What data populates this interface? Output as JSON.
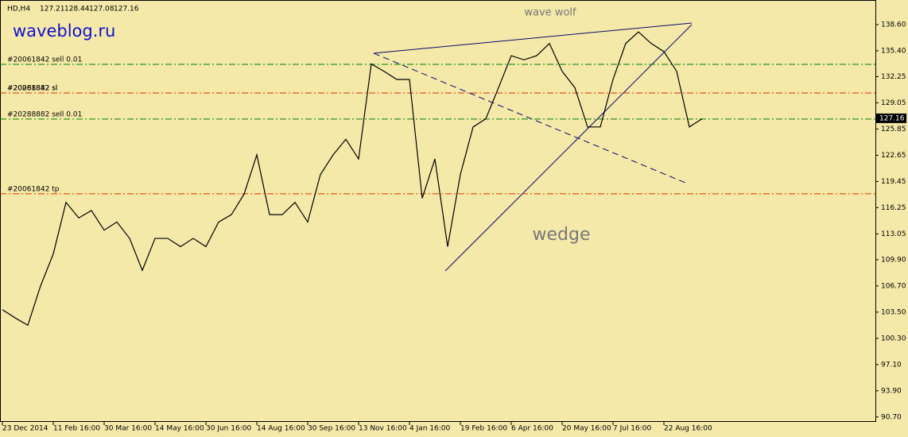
{
  "chart_data": {
    "type": "line",
    "header": {
      "symbol": "HD,H4",
      "ohlc": [
        127.21,
        128.44,
        127.08,
        127.16
      ]
    },
    "watermark": "waveblog.ru",
    "annotations": [
      "wave wolf",
      "wedge"
    ],
    "current_price": 127.16,
    "x_labels": [
      "23 Dec 2014",
      "11 Feb 16:00",
      "30 Mar 16:00",
      "14 May 16:00",
      "30 Jun 16:00",
      "14 Aug 16:00",
      "30 Sep 16:00",
      "13 Nov 16:00",
      "4 Jan 16:00",
      "19 Feb 16:00",
      "6 Apr 16:00",
      "20 May 16:00",
      "7 Jul 16:00",
      "22 Aug 16:00"
    ],
    "color": "#000000",
    "values": [
      103.8,
      102.8,
      101.9,
      106.7,
      110.6,
      116.9,
      115.0,
      115.9,
      113.5,
      114.5,
      112.5,
      108.6,
      112.5,
      112.5,
      111.5,
      112.5,
      111.5,
      114.5,
      115.4,
      117.9,
      122.7,
      115.4,
      115.4,
      116.9,
      114.5,
      120.3,
      122.7,
      124.6,
      122.2,
      133.8,
      132.9,
      131.9,
      131.9,
      117.4,
      122.2,
      111.5,
      120.3,
      126.1,
      127.1,
      130.9,
      134.8,
      134.3,
      134.8,
      136.3,
      132.9,
      130.9,
      126.1,
      126.1,
      131.9,
      136.3,
      137.7,
      136.3,
      135.3,
      132.9,
      126.1,
      127.1
    ],
    "levels": [
      {
        "label": "#20061842 sell 0.01",
        "value": 133.75,
        "color": "#008000"
      },
      {
        "label": "#20061842 sl",
        "value": 130.25,
        "color": "#e03000"
      },
      {
        "label": "#20288882 sl",
        "value": 130.25,
        "color": "#e03000"
      },
      {
        "label": "#20288882 sell 0.01",
        "value": 127.06,
        "color": "#008000"
      },
      {
        "label": "#20061842 tp",
        "value": 117.95,
        "color": "#e03000"
      }
    ],
    "ylim": [
      90.1,
      141.6
    ],
    "yticks": [
      {
        "value": 138.6,
        "label": "138.60"
      },
      {
        "value": 135.4,
        "label": "135.40"
      },
      132.25,
      129.05,
      125.85,
      122.65,
      119.45,
      116.25,
      113.05,
      {
        "value": 109.9,
        "label": "109.90"
      },
      {
        "value": 106.7,
        "label": "106.70"
      },
      {
        "value": 103.5,
        "label": "103.50"
      },
      {
        "value": 100.3,
        "label": "100.30"
      },
      {
        "value": 97.1,
        "label": "97.10"
      },
      {
        "value": 93.9,
        "label": "93.90"
      },
      {
        "value": 90.7,
        "label": "90.70"
      }
    ]
  }
}
